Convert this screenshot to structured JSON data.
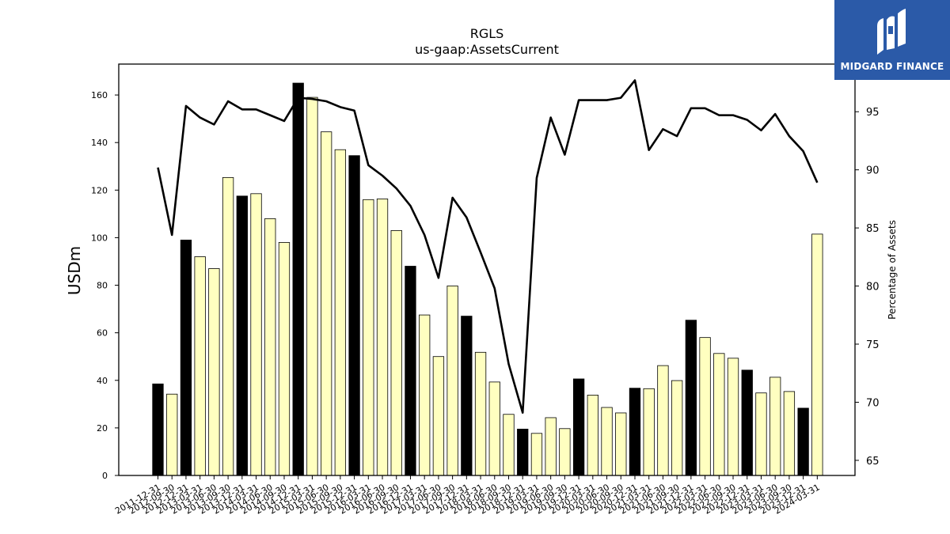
{
  "logo": {
    "text": "MIDGARD FINANCE",
    "color": "#2b5aa8"
  },
  "colors": {
    "annual_bar": "#000000",
    "quarter_bar": "#ffffc0",
    "line": "#000000"
  },
  "chart_data": {
    "type": "bar",
    "title": "RGLS",
    "subtitle": "us-gaap:AssetsCurrent",
    "ylabel": "USDm",
    "y2label": "Percentage of Assets",
    "ylim": [
      0,
      173
    ],
    "y2lim": [
      63.7,
      99.1
    ],
    "yticks": [
      0,
      20,
      40,
      60,
      80,
      100,
      120,
      140,
      160
    ],
    "y2ticks": [
      65,
      70,
      75,
      80,
      85,
      90,
      95
    ],
    "categories": [
      "2011-12-31",
      "2012-09-30",
      "2012-12-31",
      "2013-03-31",
      "2013-06-30",
      "2013-09-30",
      "2013-12-31",
      "2014-03-31",
      "2014-06-30",
      "2014-09-30",
      "2014-12-31",
      "2015-03-31",
      "2015-06-30",
      "2015-09-30",
      "2015-12-31",
      "2016-03-31",
      "2016-06-30",
      "2016-09-30",
      "2016-12-31",
      "2017-03-31",
      "2017-06-30",
      "2017-09-30",
      "2017-12-31",
      "2018-03-31",
      "2018-06-30",
      "2018-09-30",
      "2018-12-31",
      "2019-03-31",
      "2019-06-30",
      "2019-09-30",
      "2019-12-31",
      "2020-03-31",
      "2020-06-30",
      "2020-09-30",
      "2020-12-31",
      "2021-03-31",
      "2021-06-30",
      "2021-09-30",
      "2021-12-31",
      "2022-03-31",
      "2022-06-30",
      "2022-09-30",
      "2022-12-31",
      "2023-03-31",
      "2023-06-30",
      "2023-09-30",
      "2023-12-31",
      "2024-03-31"
    ],
    "tick_labels": [
      "2011-12-31",
      "2012-09-30",
      "2012-12-31",
      "2013-03-31",
      "2013-06-30",
      "2013-09-30",
      "2013-12-31",
      "2014-03-31",
      "2014-06-30",
      "2014-09-30",
      "2014-12-31",
      "2015-03-31",
      "2015-06-30",
      "2015-09-30",
      "2015-12-31",
      "2016-03-31",
      "2016-06-30",
      "2016-09-30",
      "2016-12-31",
      "2017-03-31",
      "2017-06-30",
      "2017-09-30",
      "2017-12-31",
      "2018-03-31",
      "2018-06-30",
      "2018-09-30",
      "2018-12-31",
      "2019-03-31",
      "2019-06-30",
      "2019-09-30",
      "2019-12-31",
      "2020-03-31",
      "2020-06-30",
      "2020-09-30",
      "2020-12-31",
      "2021-03-31",
      "2021-06-30",
      "2021-09-30",
      "2021-12-31",
      "2022-03-31",
      "2022-06-30",
      "2022-09-30",
      "2022-12-31",
      "2023-03-31",
      "2023-06-30",
      "2023-09-30",
      "2023-12-31",
      "2024-03-31"
    ],
    "annual": [
      true,
      false,
      true,
      false,
      false,
      false,
      true,
      false,
      false,
      false,
      true,
      false,
      false,
      false,
      true,
      false,
      false,
      false,
      true,
      false,
      false,
      false,
      true,
      false,
      false,
      false,
      true,
      false,
      false,
      false,
      true,
      false,
      false,
      false,
      true,
      false,
      false,
      false,
      true,
      false,
      false,
      false,
      true,
      false,
      false,
      false,
      true,
      false
    ],
    "series": [
      {
        "type": "bar",
        "values": [
          38.5,
          34.2,
          99,
          92,
          87,
          125.3,
          117.5,
          118.5,
          108,
          98,
          165,
          159,
          144.5,
          137,
          134.5,
          116,
          116.3,
          103,
          88,
          67.5,
          50,
          79.7,
          67,
          51.8,
          39.3,
          25.7,
          19.5,
          17.7,
          24.3,
          19.7,
          40.6,
          33.8,
          28.6,
          26.3,
          36.7,
          36.5,
          46.2,
          39.9,
          65.3,
          58,
          51.3,
          49.3,
          44.3,
          34.7,
          41.3,
          35.3,
          28.3,
          101.5
        ]
      },
      {
        "type": "line",
        "values": [
          90.2,
          84.4,
          95.5,
          94.5,
          93.9,
          95.9,
          95.2,
          95.2,
          94.7,
          94.2,
          96.2,
          96.1,
          95.9,
          95.4,
          95.1,
          90.4,
          89.5,
          88.4,
          86.9,
          84.4,
          80.7,
          87.6,
          85.9,
          82.9,
          79.8,
          73.3,
          69.1,
          89.3,
          94.5,
          91.3,
          96,
          96,
          96,
          96.2,
          97.7,
          91.7,
          93.5,
          92.9,
          95.3,
          95.3,
          94.7,
          94.7,
          94.3,
          93.4,
          94.8,
          92.9,
          91.6,
          88.9
        ]
      }
    ]
  }
}
